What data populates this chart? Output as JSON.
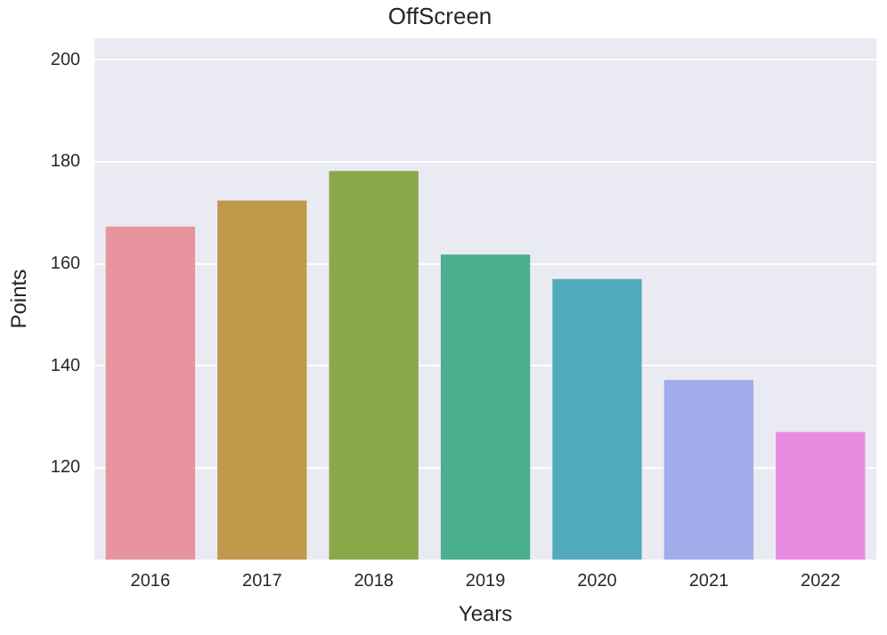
{
  "chart_data": {
    "type": "bar",
    "title": "OffScreen",
    "xlabel": "Years",
    "ylabel": "Points",
    "categories": [
      "2016",
      "2017",
      "2018",
      "2019",
      "2020",
      "2021",
      "2022"
    ],
    "values": [
      167.3,
      172.4,
      178.2,
      161.8,
      157.0,
      137.2,
      127.0
    ],
    "colors": [
      "#e8949f",
      "#c0994a",
      "#8aa84a",
      "#4aae8f",
      "#4fabb9",
      "#a1acea",
      "#e98ae1"
    ],
    "ylim": [
      102,
      204.2
    ],
    "yticks": [
      120,
      140,
      160,
      180,
      200
    ],
    "grid": "y",
    "legend": false
  }
}
